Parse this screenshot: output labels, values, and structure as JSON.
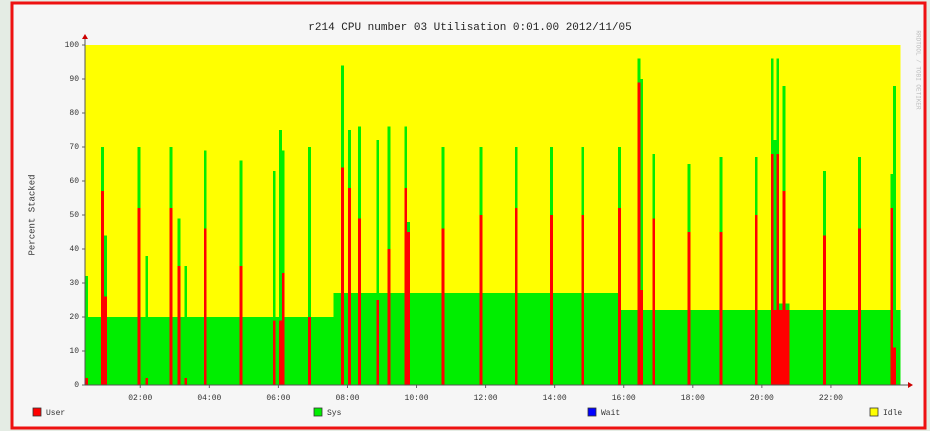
{
  "chart_data": {
    "type": "stacked-area",
    "title": "r214 CPU number 03 Utilisation 0:01.00 2012/11/05",
    "ylabel": "Percent Stacked",
    "watermark": "RRDTOOL / TOBI OETIKER",
    "xlim": [
      0.4,
      24
    ],
    "xticks": [
      {
        "value": 2,
        "label": "02:00"
      },
      {
        "value": 4,
        "label": "04:00"
      },
      {
        "value": 6,
        "label": "06:00"
      },
      {
        "value": 8,
        "label": "08:00"
      },
      {
        "value": 10,
        "label": "10:00"
      },
      {
        "value": 12,
        "label": "12:00"
      },
      {
        "value": 14,
        "label": "14:00"
      },
      {
        "value": 16,
        "label": "16:00"
      },
      {
        "value": 18,
        "label": "18:00"
      },
      {
        "value": 20,
        "label": "20:00"
      },
      {
        "value": 22,
        "label": "22:00"
      }
    ],
    "ylim": [
      0,
      100
    ],
    "yticks": [
      0,
      10,
      20,
      30,
      40,
      50,
      60,
      70,
      80,
      90,
      100
    ],
    "grid": false,
    "legend": "bottom",
    "x": [
      0.4,
      0.48,
      0.87,
      0.95,
      1.03,
      1.92,
      2.0,
      2.15,
      2.23,
      2.85,
      2.93,
      3.08,
      3.16,
      3.28,
      3.36,
      3.84,
      3.92,
      4.88,
      4.96,
      5.84,
      5.92,
      6.02,
      6.1,
      6.18,
      6.86,
      6.94,
      7.6,
      7.82,
      7.9,
      8.02,
      8.1,
      8.31,
      8.39,
      8.84,
      8.92,
      9.16,
      9.24,
      9.65,
      9.73,
      9.81,
      10.73,
      10.81,
      11.83,
      11.91,
      12.85,
      12.93,
      13.87,
      13.95,
      14.77,
      14.85,
      15.84,
      15.92,
      16.4,
      16.48,
      16.56,
      16.83,
      16.91,
      17.85,
      17.93,
      18.78,
      18.86,
      19.8,
      19.88,
      20.26,
      20.34,
      20.42,
      20.5,
      20.6,
      20.68,
      20.8,
      21.77,
      21.85,
      22.79,
      22.87,
      23.72,
      23.8,
      23.88
    ],
    "series": [
      {
        "name": "User",
        "color": "#ff0000",
        "values": [
          2,
          0,
          57,
          26,
          0,
          52,
          0,
          2,
          0,
          52,
          0,
          35,
          0,
          2,
          0,
          46,
          0,
          35,
          0,
          19,
          0,
          19,
          33,
          0,
          20,
          0,
          0,
          64,
          0,
          58,
          0,
          49,
          0,
          25,
          0,
          40,
          0,
          58,
          45,
          0,
          46,
          0,
          50,
          0,
          52,
          0,
          50,
          0,
          50,
          0,
          52,
          0,
          89,
          28,
          0,
          49,
          0,
          45,
          0,
          45,
          0,
          50,
          0,
          68,
          22,
          68,
          22,
          57,
          22,
          0,
          44,
          0,
          46,
          0,
          52,
          11,
          0
        ]
      },
      {
        "name": "Sys",
        "color": "#00ee00",
        "values": [
          30,
          20,
          13,
          18,
          20,
          18,
          20,
          36,
          20,
          18,
          20,
          14,
          20,
          33,
          20,
          23,
          20,
          31,
          20,
          44,
          20,
          56,
          36,
          20,
          50,
          20,
          27,
          30,
          27,
          17,
          27,
          27,
          27,
          47,
          27,
          36,
          27,
          18,
          3,
          27,
          24,
          27,
          20,
          27,
          18,
          27,
          20,
          27,
          20,
          27,
          18,
          22,
          7,
          62,
          22,
          19,
          22,
          20,
          22,
          22,
          22,
          17,
          22,
          28,
          50,
          28,
          2,
          31,
          2,
          22,
          19,
          22,
          21,
          22,
          10,
          77,
          22
        ]
      },
      {
        "name": "Wait",
        "color": "#0000ff",
        "values": [
          0,
          0,
          0,
          0,
          0,
          0,
          0,
          0,
          0,
          0,
          0,
          0,
          0,
          0,
          0,
          0,
          0,
          0,
          0,
          0,
          0,
          0,
          0,
          0,
          0,
          0,
          0,
          0,
          0,
          0,
          0,
          0,
          0,
          0,
          0,
          0,
          0,
          0,
          0,
          0,
          0,
          0,
          0,
          0,
          0,
          0,
          0,
          0,
          0,
          0,
          0,
          0,
          0,
          0,
          0,
          0,
          0,
          0,
          0,
          0,
          0,
          0,
          0,
          0,
          0,
          0,
          0,
          0,
          0,
          0,
          0,
          0,
          0,
          0,
          0,
          0,
          0
        ]
      },
      {
        "name": "Idle",
        "color": "#ffff00",
        "values": [
          68,
          80,
          30,
          56,
          80,
          30,
          80,
          62,
          80,
          30,
          80,
          51,
          80,
          65,
          80,
          31,
          80,
          34,
          80,
          37,
          80,
          25,
          31,
          80,
          30,
          80,
          73,
          6,
          73,
          25,
          73,
          24,
          73,
          28,
          73,
          24,
          73,
          24,
          52,
          73,
          30,
          73,
          30,
          73,
          30,
          73,
          30,
          73,
          30,
          73,
          30,
          78,
          4,
          10,
          78,
          32,
          78,
          35,
          78,
          33,
          78,
          33,
          78,
          4,
          28,
          4,
          76,
          12,
          76,
          78,
          37,
          78,
          33,
          78,
          38,
          12,
          78
        ]
      }
    ]
  }
}
